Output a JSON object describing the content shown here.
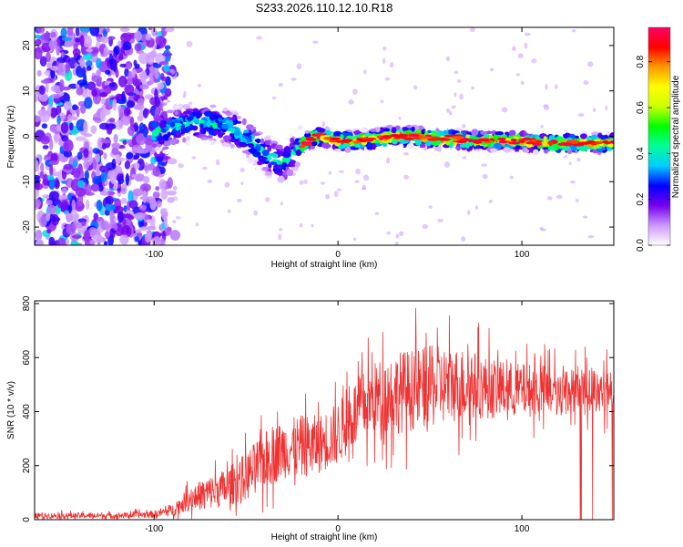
{
  "figure_title": "S233.2026.110.12.10.R18",
  "chart_data": [
    {
      "type": "heatmap",
      "name": "spectrogram",
      "xlabel": "Height of straight line (km)",
      "ylabel": "Frequency (Hz)",
      "xlim": [
        -165,
        150
      ],
      "ylim": [
        -24,
        24
      ],
      "xticks": [
        -100,
        0,
        100
      ],
      "yticks": [
        -20,
        -10,
        0,
        10,
        20
      ],
      "xtick_labels": [
        "-100",
        "0",
        "100"
      ],
      "ytick_labels": [
        "-20",
        "-10",
        "0",
        "10",
        "20"
      ],
      "grid": false,
      "colorbar": {
        "label": "Normalized spectral amplitude",
        "range": [
          0.0,
          0.95
        ],
        "ticks": [
          0.0,
          0.2,
          0.4,
          0.6,
          0.8
        ],
        "tick_labels": [
          "0.0",
          "0.2",
          "0.4",
          "0.6",
          "0.8"
        ],
        "colormap": [
          "#ffffff",
          "#cc99ff",
          "#7700ee",
          "#0000ff",
          "#00ccff",
          "#00ff99",
          "#00ff00",
          "#ccff00",
          "#ffff00",
          "#ff9900",
          "#ff0000",
          "#ff0066"
        ]
      },
      "ridge": {
        "description": "central frequency of the signal band vs height",
        "x": [
          -100,
          -90,
          -80,
          -70,
          -60,
          -50,
          -45,
          -40,
          -35,
          -30,
          -25,
          -20,
          -15,
          -10,
          -5,
          0,
          10,
          20,
          30,
          40,
          50,
          60,
          70,
          80,
          90,
          100,
          110,
          120,
          130,
          140,
          150
        ],
        "y": [
          1,
          2,
          3,
          3,
          2,
          0,
          -2,
          -4,
          -5,
          -6,
          -4,
          -2,
          -0.5,
          0,
          -0.5,
          -1,
          -1,
          -0.5,
          0,
          0,
          -0.5,
          -0.5,
          -1,
          -1,
          -1,
          -1,
          -1.5,
          -1.5,
          -1.5,
          -1.5,
          -1.5
        ]
      }
    },
    {
      "type": "line",
      "name": "snr",
      "xlabel": "Height of straight line (km)",
      "ylabel": "SNR (10 * v/v)",
      "xlim": [
        -165,
        150
      ],
      "ylim": [
        0,
        810
      ],
      "xticks": [
        -100,
        0,
        100
      ],
      "yticks": [
        0,
        200,
        400,
        600,
        800
      ],
      "xtick_labels": [
        "-100",
        "0",
        "100"
      ],
      "ytick_labels": [
        "0",
        "200",
        "400",
        "600",
        "800"
      ],
      "grid": false,
      "series": [
        {
          "name": "SNR",
          "color": "#ee3333",
          "envelope_x": [
            -165,
            -140,
            -120,
            -100,
            -90,
            -80,
            -70,
            -60,
            -50,
            -40,
            -30,
            -20,
            -10,
            0,
            10,
            20,
            30,
            40,
            50,
            60,
            70,
            80,
            90,
            100,
            110,
            120,
            130,
            140,
            150
          ],
          "envelope_mean": [
            15,
            15,
            15,
            20,
            35,
            80,
            100,
            120,
            160,
            220,
            260,
            270,
            280,
            320,
            400,
            450,
            470,
            480,
            490,
            500,
            500,
            490,
            480,
            480,
            480,
            470,
            480,
            480,
            480
          ],
          "envelope_spread": [
            12,
            12,
            12,
            15,
            25,
            50,
            70,
            80,
            100,
            120,
            120,
            130,
            120,
            130,
            140,
            150,
            170,
            170,
            170,
            160,
            150,
            130,
            120,
            110,
            110,
            100,
            90,
            90,
            90
          ],
          "dropouts_x_range": [
            118,
            150
          ]
        }
      ]
    }
  ]
}
